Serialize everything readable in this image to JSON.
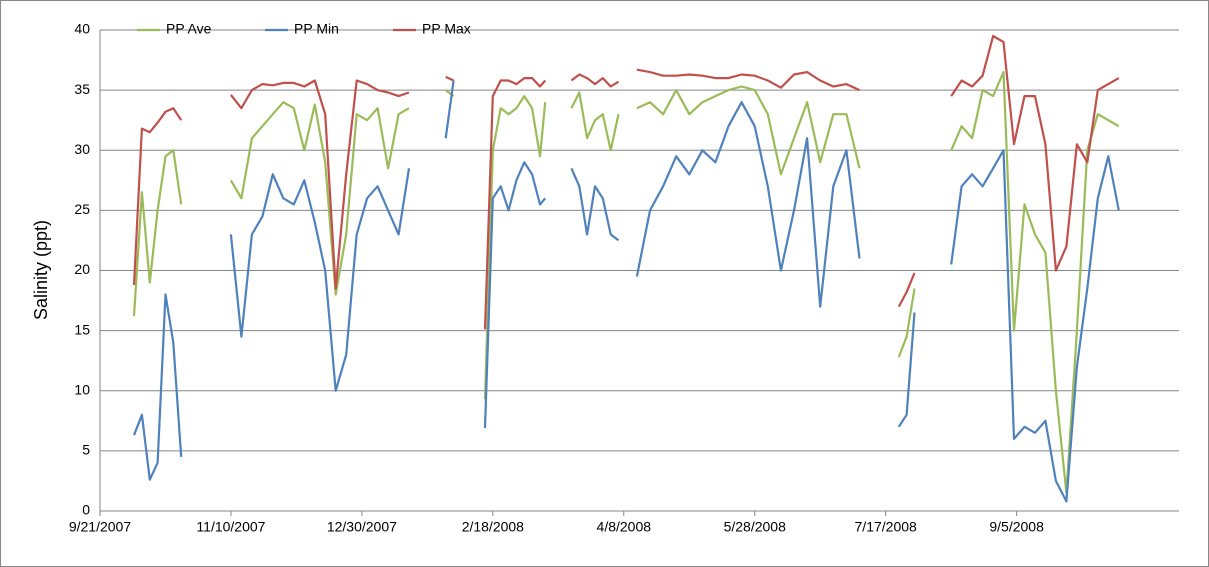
{
  "chart_data": {
    "type": "line",
    "y_label": "Salinity (ppt)",
    "x": [
      "10/4/2007",
      "10/7/2007",
      "10/10/2007",
      "10/13/2007",
      "10/16/2007",
      "10/19/2007",
      "10/22/2007",
      "10/31/2007",
      "11/10/2007",
      "11/14/2007",
      "11/18/2007",
      "11/22/2007",
      "11/26/2007",
      "11/30/2007",
      "12/4/2007",
      "12/8/2007",
      "12/12/2007",
      "12/16/2007",
      "12/20/2007",
      "12/24/2007",
      "12/28/2007",
      "1/1/2008",
      "1/5/2008",
      "1/9/2008",
      "1/13/2008",
      "1/17/2008",
      "1/24/2008",
      "1/31/2008",
      "2/3/2008",
      "2/9/2008",
      "2/15/2008",
      "2/18/2008",
      "2/21/2008",
      "2/24/2008",
      "2/27/2008",
      "3/1/2008",
      "3/4/2008",
      "3/7/2008",
      "3/9/2008",
      "3/14/2008",
      "3/19/2008",
      "3/22/2008",
      "3/25/2008",
      "3/28/2008",
      "3/31/2008",
      "4/3/2008",
      "4/6/2008",
      "4/10/2008",
      "4/13/2008",
      "4/18/2008",
      "4/23/2008",
      "4/28/2008",
      "5/3/2008",
      "5/8/2008",
      "5/13/2008",
      "5/18/2008",
      "5/23/2008",
      "5/28/2008",
      "6/2/2008",
      "6/7/2008",
      "6/12/2008",
      "6/17/2008",
      "6/22/2008",
      "6/27/2008",
      "7/2/2008",
      "7/7/2008",
      "7/14/2008",
      "7/22/2008",
      "7/25/2008",
      "7/28/2008",
      "8/4/2008",
      "8/11/2008",
      "8/15/2008",
      "8/19/2008",
      "8/23/2008",
      "8/27/2008",
      "8/31/2008",
      "9/4/2008",
      "9/8/2008",
      "9/12/2008",
      "9/16/2008",
      "9/20/2008",
      "9/24/2008",
      "9/28/2008",
      "10/2/2008",
      "10/6/2008",
      "10/10/2008",
      "10/14/2008"
    ],
    "series": [
      {
        "name": "PP Ave",
        "color": "#9bbb59",
        "values": [
          16.2,
          26.5,
          19,
          25,
          29.5,
          30,
          25.5,
          null,
          27.5,
          26,
          31,
          32,
          33,
          34,
          33.5,
          30,
          33.8,
          29,
          18,
          23,
          33,
          32.5,
          33.5,
          28.5,
          33,
          33.5,
          null,
          35,
          34.5,
          null,
          9.3,
          30,
          33.5,
          33,
          33.5,
          34.5,
          33.5,
          29.5,
          34,
          null,
          33.5,
          34.8,
          31,
          32.5,
          33,
          30,
          33,
          null,
          33.5,
          34,
          33,
          35,
          33,
          34,
          34.5,
          35,
          35.3,
          35,
          33,
          28,
          31,
          34,
          29,
          33,
          33,
          28.5,
          null,
          12.8,
          14.5,
          18.5,
          null,
          30,
          32,
          31,
          35,
          34.5,
          36.5,
          15,
          25.5,
          23,
          21.5,
          10,
          1.5,
          15,
          30,
          33,
          32.5,
          32
        ]
      },
      {
        "name": "PP Min",
        "color": "#4f81bd",
        "values": [
          6.3,
          8,
          2.6,
          4,
          18,
          14,
          4.5,
          null,
          23,
          14.5,
          23,
          24.5,
          28,
          26,
          25.5,
          27.5,
          24,
          20,
          10,
          13,
          23,
          26,
          27,
          25,
          23,
          28.5,
          null,
          31,
          35.8,
          null,
          6.9,
          26,
          27,
          25,
          27.5,
          29,
          28,
          25.5,
          26,
          null,
          28.5,
          27,
          23,
          27,
          26,
          23,
          22.5,
          null,
          19.5,
          25,
          27,
          29.5,
          28,
          30,
          29,
          32,
          34,
          32,
          27,
          20,
          25,
          31,
          17,
          27,
          30,
          21,
          null,
          7,
          8,
          16.5,
          null,
          20.5,
          27,
          28,
          27,
          28.5,
          30,
          6,
          7,
          6.5,
          7.5,
          2.5,
          0.8,
          12,
          18.5,
          26,
          29.5,
          25
        ]
      },
      {
        "name": "PP Max",
        "color": "#c0504d",
        "values": [
          18.8,
          31.8,
          31.5,
          32.3,
          33.2,
          33.5,
          32.5,
          null,
          34.6,
          33.5,
          35,
          35.5,
          35.4,
          35.6,
          35.6,
          35.3,
          35.8,
          33,
          18.5,
          28,
          35.8,
          35.5,
          35,
          34.8,
          34.5,
          34.8,
          null,
          36.1,
          35.8,
          null,
          15.1,
          34.5,
          35.8,
          35.8,
          35.5,
          36,
          36,
          35.3,
          35.8,
          null,
          35.8,
          36.3,
          36,
          35.5,
          36,
          35.3,
          35.7,
          null,
          36.7,
          36.5,
          36.2,
          36.2,
          36.3,
          36.2,
          36,
          36,
          36.3,
          36.2,
          35.8,
          35.2,
          36.3,
          36.5,
          35.8,
          35.3,
          35.5,
          35,
          null,
          17,
          18.2,
          19.8,
          null,
          34.5,
          35.8,
          35.3,
          36.2,
          39.5,
          39,
          30.5,
          34.5,
          34.5,
          30.5,
          20,
          22,
          30.5,
          29,
          35,
          35.5,
          36
        ]
      }
    ],
    "xlim": [
      "9/21/2007",
      "11/6/2008"
    ],
    "xticks": [
      "9/21/2007",
      "11/10/2007",
      "12/30/2007",
      "2/18/2008",
      "4/8/2008",
      "5/28/2008",
      "7/17/2008",
      "9/5/2008"
    ],
    "ylim": [
      0,
      40
    ],
    "yticks": [
      0,
      5,
      10,
      15,
      20,
      25,
      30,
      35,
      40
    ],
    "grid": true,
    "legend": "top-left"
  }
}
